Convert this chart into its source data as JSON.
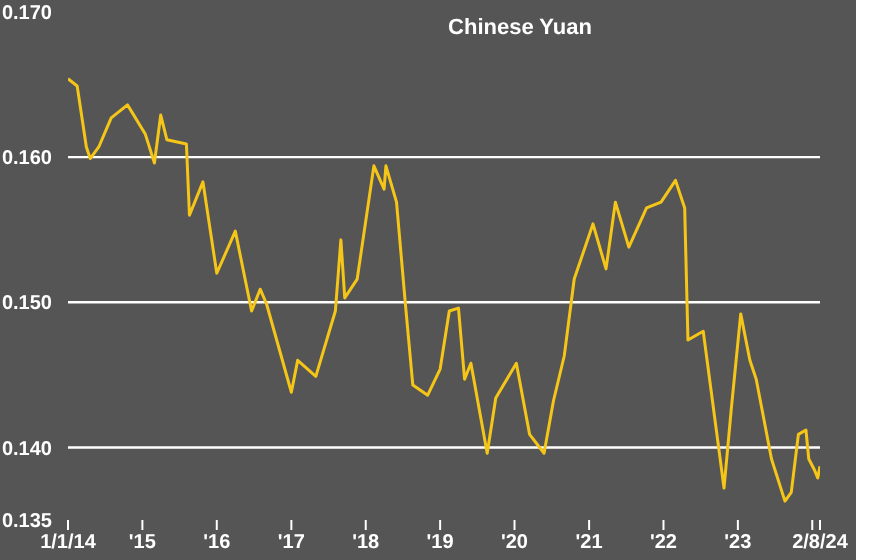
{
  "chart_data": {
    "type": "line",
    "title": "Chinese Yuan",
    "x": [
      "2014-01-01",
      "2014-02-15",
      "2014-04-01",
      "2014-04-20",
      "2014-06-01",
      "2014-08-01",
      "2014-10-20",
      "2015-01-15",
      "2015-03-01",
      "2015-04-01",
      "2015-05-01",
      "2015-08-05",
      "2015-08-20",
      "2015-10-25",
      "2016-01-01",
      "2016-04-01",
      "2016-06-20",
      "2016-08-01",
      "2016-09-01",
      "2017-01-01",
      "2017-02-01",
      "2017-05-01",
      "2017-08-05",
      "2017-09-01",
      "2017-09-20",
      "2017-11-20",
      "2018-02-10",
      "2018-04-01",
      "2018-04-10",
      "2018-06-01",
      "2018-07-15",
      "2018-08-20",
      "2018-11-01",
      "2019-01-01",
      "2019-02-15",
      "2019-04-01",
      "2019-05-01",
      "2019-06-01",
      "2019-08-20",
      "2019-10-01",
      "2020-01-10",
      "2020-03-15",
      "2020-05-25",
      "2020-07-10",
      "2020-09-01",
      "2020-10-20",
      "2021-01-20",
      "2021-03-25",
      "2021-05-10",
      "2021-07-15",
      "2021-10-10",
      "2021-12-20",
      "2022-03-01",
      "2022-04-15",
      "2022-05-01",
      "2022-07-15",
      "2022-10-25",
      "2022-11-30",
      "2023-01-15",
      "2023-03-01",
      "2023-04-01",
      "2023-06-15",
      "2023-08-20",
      "2023-09-20",
      "2023-10-25",
      "2023-12-01",
      "2023-12-15",
      "2024-01-10",
      "2024-01-28",
      "2024-02-08"
    ],
    "series": [
      {
        "color": "#f5c518",
        "values": [
          0.1654,
          0.1649,
          0.1607,
          0.1599,
          0.1607,
          0.1627,
          0.1636,
          0.1616,
          0.1596,
          0.1629,
          0.1612,
          0.1609,
          0.156,
          0.1583,
          0.152,
          0.1549,
          0.1494,
          0.1509,
          0.1499,
          0.1438,
          0.146,
          0.1449,
          0.1494,
          0.1543,
          0.1503,
          0.1516,
          0.1594,
          0.1578,
          0.1594,
          0.1569,
          0.1498,
          0.1443,
          0.1436,
          0.1454,
          0.1494,
          0.1496,
          0.1447,
          0.1458,
          0.1396,
          0.1434,
          0.1458,
          0.1409,
          0.1396,
          0.1432,
          0.1463,
          0.1516,
          0.1554,
          0.1523,
          0.1569,
          0.1538,
          0.1565,
          0.1569,
          0.1584,
          0.1565,
          0.1474,
          0.148,
          0.1372,
          0.1427,
          0.1492,
          0.146,
          0.1447,
          0.1392,
          0.1363,
          0.1369,
          0.1409,
          0.1412,
          0.1392,
          0.1385,
          0.1379,
          0.1387
        ]
      }
    ],
    "ylim": [
      0.135,
      0.17
    ],
    "yticks": [
      {
        "value": 0.135,
        "label": "0.135"
      },
      {
        "value": 0.14,
        "label": "0.140"
      },
      {
        "value": 0.15,
        "label": "0.150"
      },
      {
        "value": 0.16,
        "label": "0.160"
      },
      {
        "value": 0.17,
        "label": "0.170"
      }
    ],
    "xlim": [
      "2014-01-01",
      "2024-02-08"
    ],
    "xticks": [
      {
        "value": "2014-01-01",
        "label": "1/1/14"
      },
      {
        "value": "2015-01-01",
        "label": "'15"
      },
      {
        "value": "2016-01-01",
        "label": "'16"
      },
      {
        "value": "2017-01-01",
        "label": "'17"
      },
      {
        "value": "2018-01-01",
        "label": "'18"
      },
      {
        "value": "2019-01-01",
        "label": "'19"
      },
      {
        "value": "2020-01-01",
        "label": "'20"
      },
      {
        "value": "2021-01-01",
        "label": "'21"
      },
      {
        "value": "2022-01-01",
        "label": "'22"
      },
      {
        "value": "2023-01-01",
        "label": "'23"
      },
      {
        "value": "2024-01-01",
        "label": null
      },
      {
        "value": "2024-02-08",
        "label": "2/8/24"
      }
    ],
    "grid": "y",
    "legend": false,
    "marker": "none",
    "line_style": "solid"
  }
}
